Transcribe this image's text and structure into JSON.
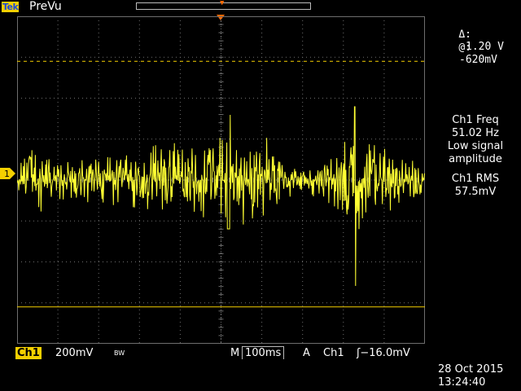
{
  "header": {
    "brand": "Tek",
    "status": "PreVu"
  },
  "readouts": {
    "cursor_delta_symbol": "Δ:",
    "cursor_delta_value": "1.20 V",
    "cursor_at_symbol": "@:",
    "cursor_at_value": "-620mV",
    "measurements": [
      {
        "line1": "Ch1 Freq",
        "line2": "51.02 Hz",
        "line3": "Low signal",
        "line4": "amplitude"
      },
      {
        "line1": "Ch1 RMS",
        "line2": "57.5mV"
      }
    ]
  },
  "channel": {
    "label": "Ch1",
    "marker": "1",
    "scale": "200mV",
    "bw_limit": "BW"
  },
  "timebase": {
    "label": "M",
    "value": "100ms"
  },
  "trigger": {
    "mode": "A",
    "source": "Ch1",
    "slope_symbol": "ʃ",
    "level": "−16.0mV"
  },
  "timestamp": {
    "date": "28 Oct  2015",
    "time": "13:24:40"
  },
  "colors": {
    "trace": "#ffff33",
    "cursor": "#f5d000",
    "accent": "#ff6a00",
    "grid": "#6e6e6e"
  },
  "waveform": {
    "baseline_volts": 0,
    "volts_per_div": 0.2,
    "cursor_upper_volts": 0.58,
    "cursor_lower_volts": -0.62
  }
}
